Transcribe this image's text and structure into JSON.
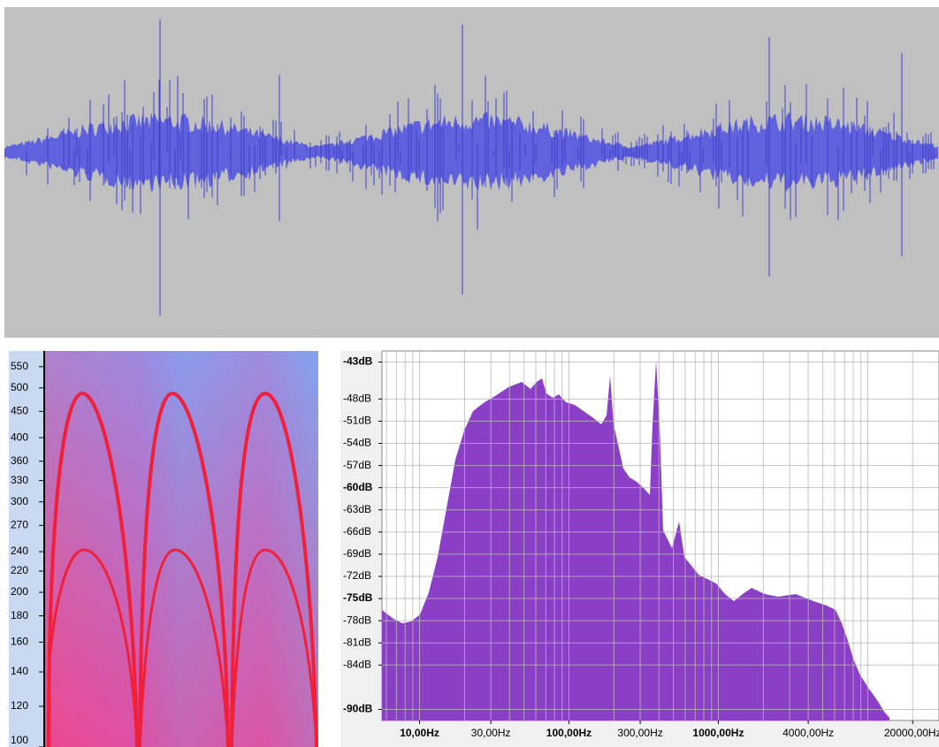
{
  "spectrogram": {
    "ylim": [
      100,
      590
    ],
    "log": true,
    "yticks": [
      100,
      120,
      140,
      160,
      180,
      200,
      220,
      240,
      270,
      300,
      330,
      360,
      400,
      450,
      500,
      550
    ]
  },
  "spectrum": {
    "ylim": [
      -91.5,
      -41.5
    ],
    "xlim": [
      5.6,
      30000
    ],
    "xlog": true,
    "grid": true,
    "yticks": [
      {
        "value": -43,
        "label": "-43dB"
      },
      {
        "value": -48,
        "label": "-48dB"
      },
      {
        "value": -51,
        "label": "-51dB"
      },
      {
        "value": -54,
        "label": "-54dB"
      },
      {
        "value": -57,
        "label": "-57dB"
      },
      {
        "value": -60,
        "label": "-60dB"
      },
      {
        "value": -63,
        "label": "-63dB"
      },
      {
        "value": -66,
        "label": "-66dB"
      },
      {
        "value": -69,
        "label": "-69dB"
      },
      {
        "value": -72,
        "label": "-72dB"
      },
      {
        "value": -75,
        "label": "-75dB"
      },
      {
        "value": -78,
        "label": "-78dB"
      },
      {
        "value": -81,
        "label": "-81dB"
      },
      {
        "value": -84,
        "label": "-84dB"
      },
      {
        "value": -90,
        "label": "-90dB"
      }
    ],
    "xticks": [
      {
        "value": 10,
        "label": "10,00Hz"
      },
      {
        "value": 30,
        "label": "30,00Hz"
      },
      {
        "value": 100,
        "label": "100,00Hz"
      },
      {
        "value": 300,
        "label": "300,00Hz"
      },
      {
        "value": 1000,
        "label": "1000,00Hz"
      },
      {
        "value": 4000,
        "label": "4000,00Hz"
      },
      {
        "value": 20000,
        "label": "20000,00Hz"
      }
    ]
  }
}
